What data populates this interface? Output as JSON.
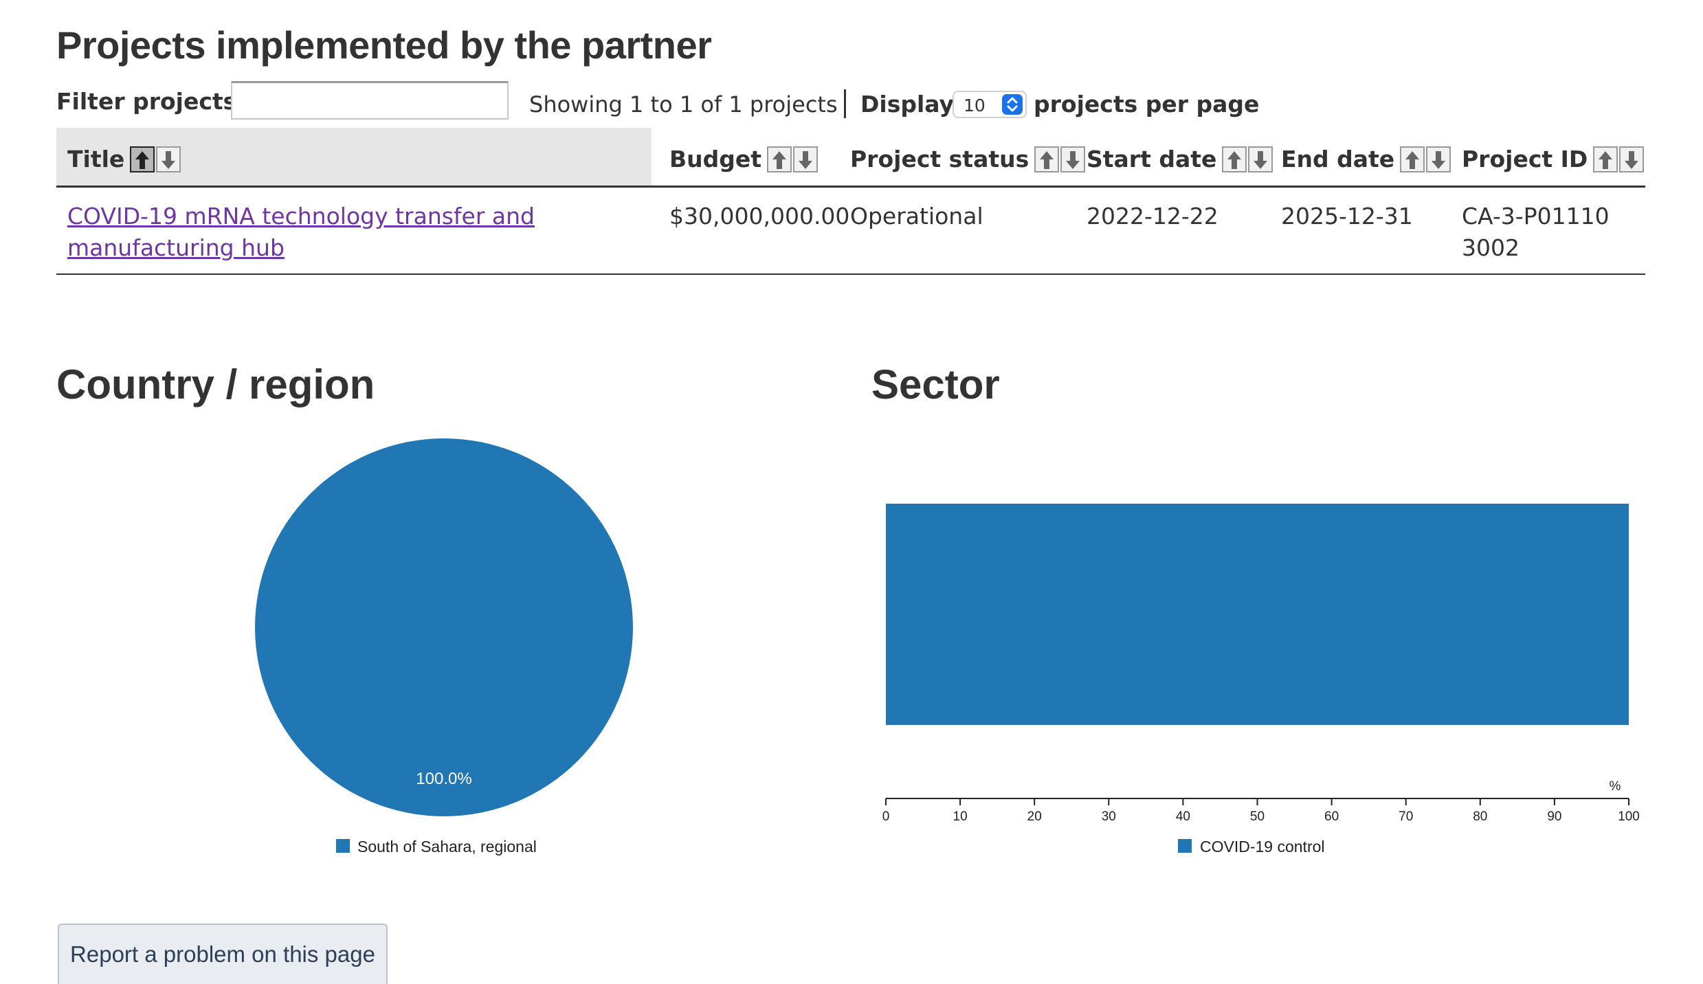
{
  "page": {
    "title": "Projects implemented by the partner"
  },
  "filter": {
    "label": "Filter projects",
    "value": "",
    "placeholder": ""
  },
  "pagination": {
    "showing": "Showing 1 to 1 of 1 projects",
    "display_label": "Display",
    "per_page_value": "10",
    "per_page_label": "projects per page"
  },
  "table": {
    "columns": [
      "Title",
      "Budget",
      "Project status",
      "Start date",
      "End date",
      "Project ID"
    ],
    "rows": [
      {
        "title": "COVID-19 mRNA technology transfer and manufacturing hub",
        "budget": "$30,000,000.00",
        "status": "Operational",
        "start_date": "2022-12-22",
        "end_date": "2025-12-31",
        "project_id": "CA-3-P011103002"
      }
    ]
  },
  "sections": {
    "country": "Country / region",
    "sector": "Sector"
  },
  "colors": {
    "series": "#2077b4",
    "link": "#6f36a3",
    "select_accent": "#1a73e8"
  },
  "chart_data": [
    {
      "type": "pie",
      "title": "Country / region",
      "categories": [
        "South of Sahara, regional"
      ],
      "values": [
        100.0
      ],
      "data_labels": [
        "100.0%"
      ],
      "legend": "bottom"
    },
    {
      "type": "bar",
      "orientation": "horizontal",
      "title": "Sector",
      "categories": [
        "COVID-19 control"
      ],
      "values": [
        100
      ],
      "xlabel": "%",
      "xlim": [
        0,
        100
      ],
      "xticks": [
        0,
        10,
        20,
        30,
        40,
        50,
        60,
        70,
        80,
        90,
        100
      ],
      "grid": false,
      "legend": "bottom"
    }
  ],
  "footer": {
    "report_button": "Report a problem on this page"
  }
}
